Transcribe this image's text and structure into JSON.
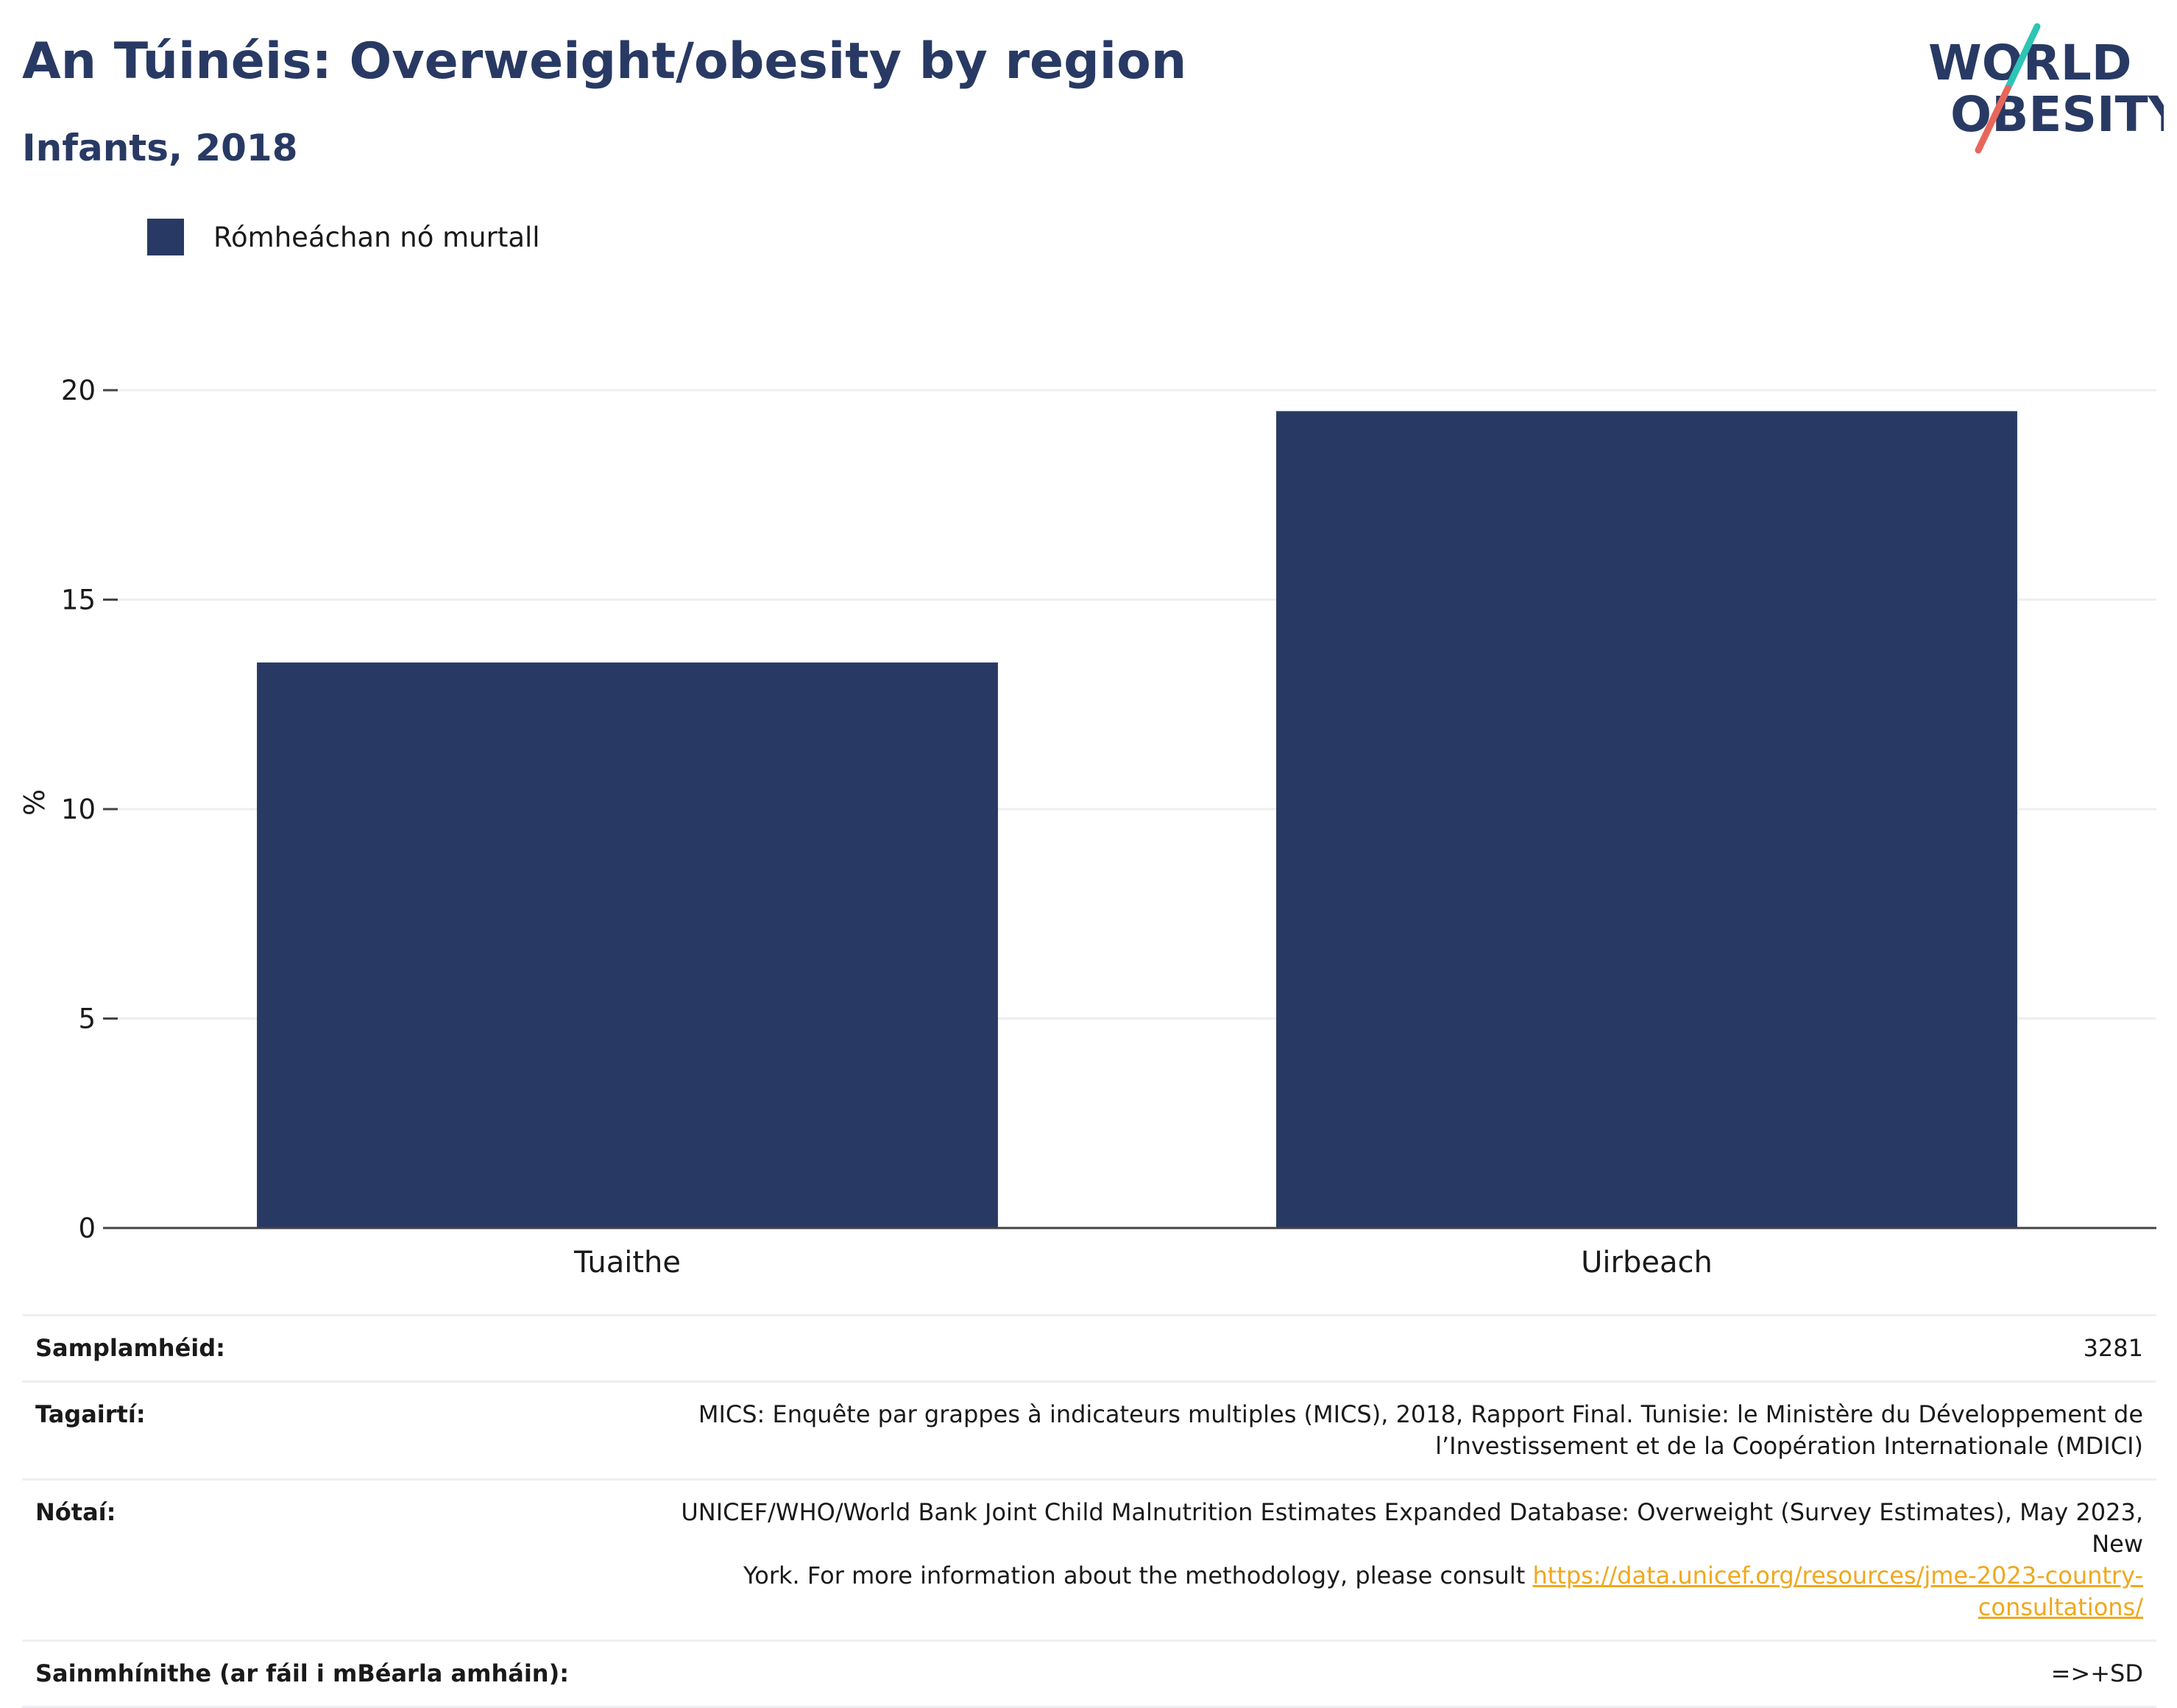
{
  "header": {
    "title": "An Túinéis: Overweight/obesity by region",
    "subtitle": "Infants, 2018"
  },
  "logo": {
    "line1": "WORLD",
    "line2": "OBESITY",
    "accent_colors": [
      "#2ec4b6",
      "#e8665a"
    ]
  },
  "colors": {
    "bar": "#283a64",
    "grid": "#eeeff4",
    "link": "#f0a81c",
    "text": "#283a64"
  },
  "chart_data": {
    "type": "bar",
    "categories": [
      "Tuaithe",
      "Uirbeach"
    ],
    "series": [
      {
        "name": "Rómheáchan nó murtall",
        "values": [
          13.5,
          19.5
        ]
      }
    ],
    "xlabel": "",
    "ylabel": "%",
    "ylim": [
      0,
      20
    ],
    "yticks": [
      0,
      5,
      10,
      15,
      20
    ],
    "grid": true,
    "legend_position": "top-left"
  },
  "info": {
    "sample_size": {
      "label": "Samplamhéid:",
      "value": "3281"
    },
    "references": {
      "label": "Tagairtí:",
      "line1": "MICS: Enquête par grappes à indicateurs multiples (MICS), 2018, Rapport Final. Tunisie: le Ministère du Développement de",
      "line2": "l’Investissement et de la Coopération Internationale (MDICI)"
    },
    "notes": {
      "label": "Nótaí:",
      "line1": "UNICEF/WHO/World Bank Joint Child Malnutrition Estimates Expanded Database: Overweight (Survey Estimates), May 2023, New",
      "line2_text": "York. For more information about the methodology, please consult ",
      "link": "https://data.unicef.org/resources/jme-2023-country-consultations/"
    },
    "definitions": {
      "label": "Sainmhínithe (ar fáil i mBéarla amháin):",
      "value": "=>+SD"
    }
  }
}
